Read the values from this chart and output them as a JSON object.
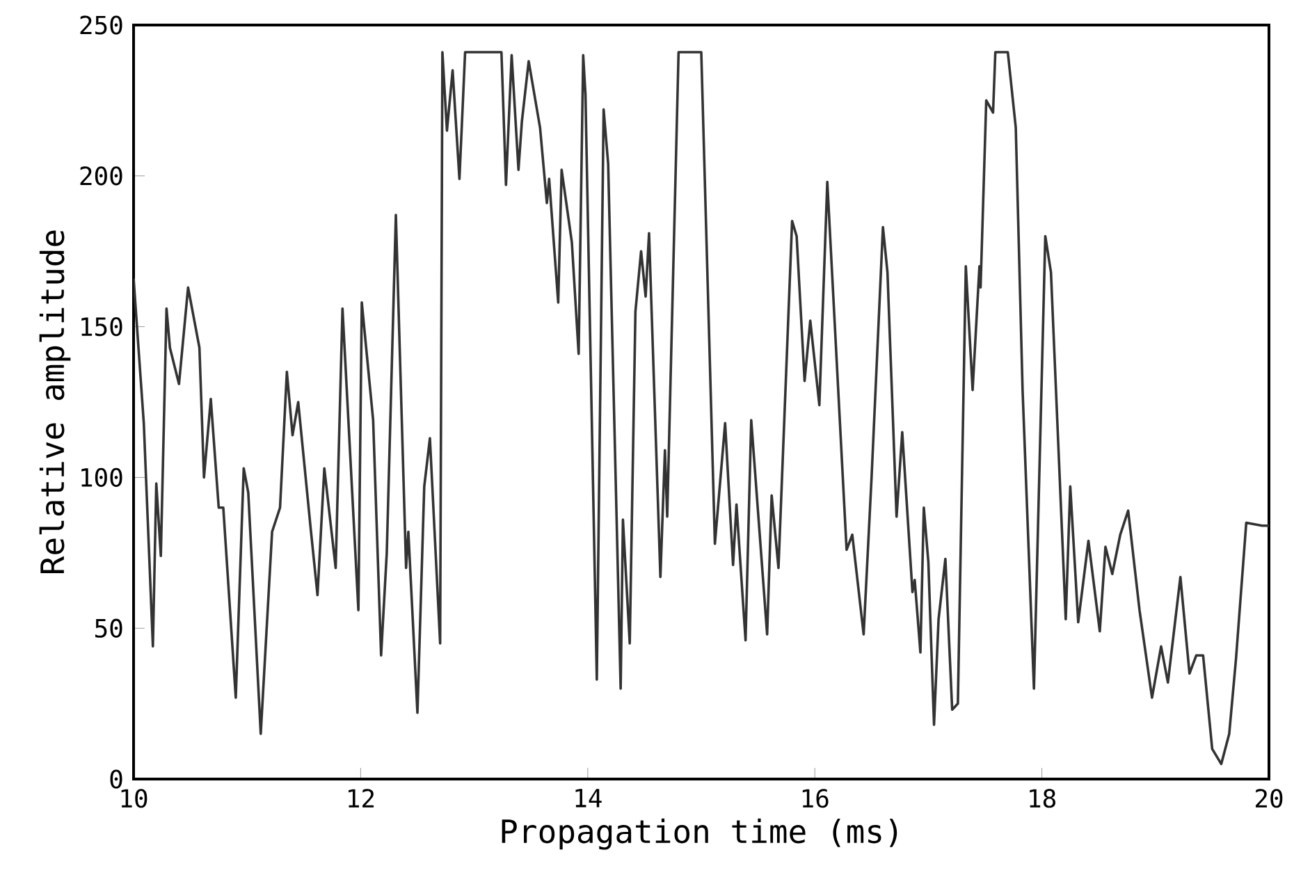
{
  "chart_data": {
    "type": "line",
    "xlabel": "Propagation time (ms)",
    "ylabel": "Relative amplitude",
    "xlim": [
      10,
      20
    ],
    "ylim": [
      0,
      250
    ],
    "xticks": [
      10,
      12,
      14,
      16,
      18,
      20
    ],
    "yticks": [
      0,
      50,
      100,
      150,
      200,
      250
    ],
    "grid": false,
    "marker": "none",
    "line_style": "solid",
    "series": [
      {
        "color": "#333333",
        "x": [
          10.0,
          10.09,
          10.17,
          10.2,
          10.24,
          10.29,
          10.32,
          10.4,
          10.48,
          10.58,
          10.62,
          10.68,
          10.75,
          10.79,
          10.9,
          10.97,
          11.01,
          11.12,
          11.22,
          11.29,
          11.35,
          11.4,
          11.45,
          11.56,
          11.62,
          11.68,
          11.78,
          11.84,
          11.98,
          12.01,
          12.11,
          12.18,
          12.23,
          12.31,
          12.4,
          12.42,
          12.5,
          12.56,
          12.61,
          12.7,
          12.72,
          12.76,
          12.81,
          12.87,
          12.92,
          13.24,
          13.28,
          13.33,
          13.39,
          13.42,
          13.48,
          13.58,
          13.64,
          13.66,
          13.74,
          13.77,
          13.86,
          13.92,
          13.96,
          13.98,
          14.08,
          14.14,
          14.18,
          14.29,
          14.31,
          14.37,
          14.42,
          14.47,
          14.51,
          14.54,
          14.64,
          14.68,
          14.7,
          14.8,
          15.0,
          15.12,
          15.21,
          15.28,
          15.31,
          15.39,
          15.44,
          15.58,
          15.62,
          15.68,
          15.8,
          15.84,
          15.91,
          15.96,
          16.04,
          16.11,
          16.28,
          16.33,
          16.43,
          16.5,
          16.6,
          16.64,
          16.72,
          16.77,
          16.86,
          16.88,
          16.93,
          16.96,
          17.0,
          17.05,
          17.09,
          17.15,
          17.21,
          17.26,
          17.33,
          17.39,
          17.45,
          17.46,
          17.51,
          17.57,
          17.59,
          17.7,
          17.77,
          17.83,
          17.93,
          18.03,
          18.08,
          18.21,
          18.25,
          18.32,
          18.41,
          18.51,
          18.56,
          18.62,
          18.69,
          18.76,
          18.86,
          18.97,
          19.05,
          19.11,
          19.22,
          19.3,
          19.36,
          19.42,
          19.5,
          19.58,
          19.65,
          19.71,
          19.8,
          19.94,
          20.0
        ],
        "values": [
          166,
          118,
          44,
          98,
          74,
          156,
          143,
          131,
          163,
          143,
          100,
          126,
          90,
          90,
          27,
          103,
          95,
          15,
          82,
          90,
          135,
          114,
          125,
          83,
          61,
          103,
          70,
          156,
          56,
          158,
          119,
          41,
          75,
          187,
          70,
          82,
          22,
          97,
          113,
          45,
          241,
          215,
          235,
          199,
          241,
          241,
          197,
          240,
          202,
          218,
          238,
          216,
          191,
          199,
          158,
          202,
          178,
          141,
          240,
          227,
          33,
          222,
          204,
          30,
          86,
          45,
          155,
          175,
          160,
          181,
          67,
          109,
          87,
          241,
          241,
          78,
          118,
          71,
          91,
          46,
          119,
          48,
          94,
          70,
          185,
          180,
          132,
          152,
          124,
          198,
          76,
          81,
          48,
          100,
          183,
          168,
          87,
          115,
          62,
          66,
          42,
          90,
          72,
          18,
          53,
          73,
          23,
          25,
          170,
          129,
          170,
          163,
          225,
          221,
          241,
          241,
          216,
          129,
          30,
          180,
          168,
          53,
          97,
          52,
          79,
          49,
          77,
          68,
          81,
          89,
          56,
          27,
          44,
          32,
          67,
          35,
          41,
          41,
          10,
          5,
          15,
          40,
          85,
          84,
          84
        ]
      }
    ]
  }
}
